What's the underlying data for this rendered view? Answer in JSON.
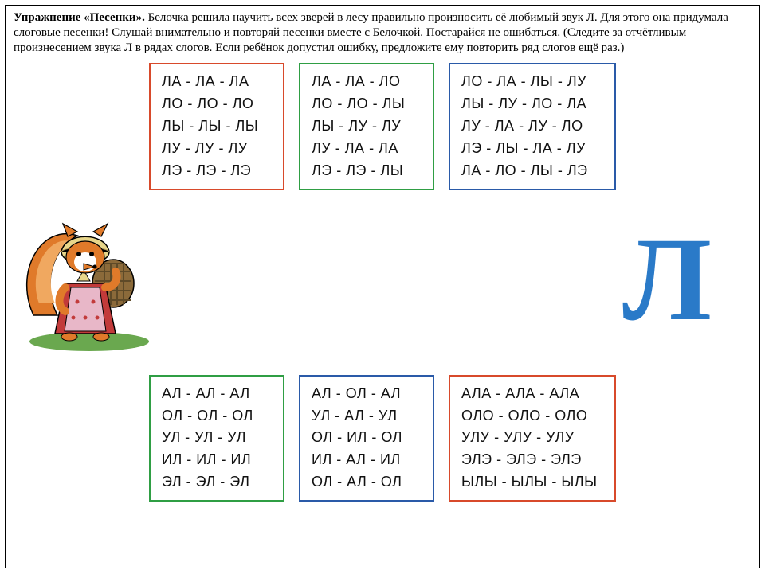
{
  "instruction": {
    "title": "Упражнение «Песенки».",
    "body": " Белочка решила научить всех зверей в лесу правильно произносить её любимый звук Л. Для этого она придумала слоговые песенки! Слушай внимательно и повторяй песенки вместе с Белочкой. Постарайся не ошибаться. (Следите за отчётливым произнесением звука Л в рядах слогов. Если ребёнок допустил ошибку, предложите ему повторить ряд слогов ещё раз.)"
  },
  "colors": {
    "red": "#d84a2b",
    "green": "#2f9e44",
    "blue": "#2a5aa8",
    "bigL": "#2a7ac8"
  },
  "big_letter": "Л",
  "top_boxes": [
    {
      "border": "#d84a2b",
      "lines": [
        "ЛА - ЛА - ЛА",
        "ЛО - ЛО - ЛО",
        "ЛЫ - ЛЫ - ЛЫ",
        "ЛУ - ЛУ - ЛУ",
        "ЛЭ - ЛЭ - ЛЭ"
      ]
    },
    {
      "border": "#2f9e44",
      "lines": [
        "ЛА - ЛА - ЛО",
        "ЛО - ЛО - ЛЫ",
        "ЛЫ - ЛУ - ЛУ",
        "ЛУ - ЛА - ЛА",
        "ЛЭ - ЛЭ - ЛЫ"
      ]
    },
    {
      "border": "#2a5aa8",
      "wide": true,
      "lines": [
        "ЛО - ЛА - ЛЫ - ЛУ",
        "ЛЫ - ЛУ - ЛО - ЛА",
        "ЛУ - ЛА - ЛУ - ЛО",
        "ЛЭ - ЛЫ - ЛА - ЛУ",
        "ЛА - ЛО - ЛЫ - ЛЭ"
      ]
    }
  ],
  "bottom_boxes": [
    {
      "border": "#2f9e44",
      "lines": [
        "АЛ - АЛ - АЛ",
        "ОЛ - ОЛ - ОЛ",
        "УЛ - УЛ - УЛ",
        "ИЛ - ИЛ - ИЛ",
        "ЭЛ - ЭЛ - ЭЛ"
      ]
    },
    {
      "border": "#2a5aa8",
      "lines": [
        "АЛ - ОЛ - АЛ",
        "УЛ - АЛ - УЛ",
        "ОЛ - ИЛ - ОЛ",
        "ИЛ - АЛ - ИЛ",
        "ОЛ - АЛ - ОЛ"
      ]
    },
    {
      "border": "#d84a2b",
      "wide": true,
      "lines": [
        "АЛА - АЛА - АЛА",
        "ОЛО - ОЛО - ОЛО",
        "УЛУ - УЛУ - УЛУ",
        "ЭЛЭ - ЭЛЭ - ЭЛЭ",
        "ЫЛЫ - ЫЛЫ - ЫЛЫ"
      ]
    }
  ],
  "squirrel": {
    "fur": "#e07a2a",
    "dress": "#c23a3a",
    "apron": "#e8b7c8",
    "scarf": "#e8d68a",
    "basket": "#8b6a3a",
    "grass": "#6aa84f",
    "white": "#ffffff",
    "black": "#000000"
  }
}
